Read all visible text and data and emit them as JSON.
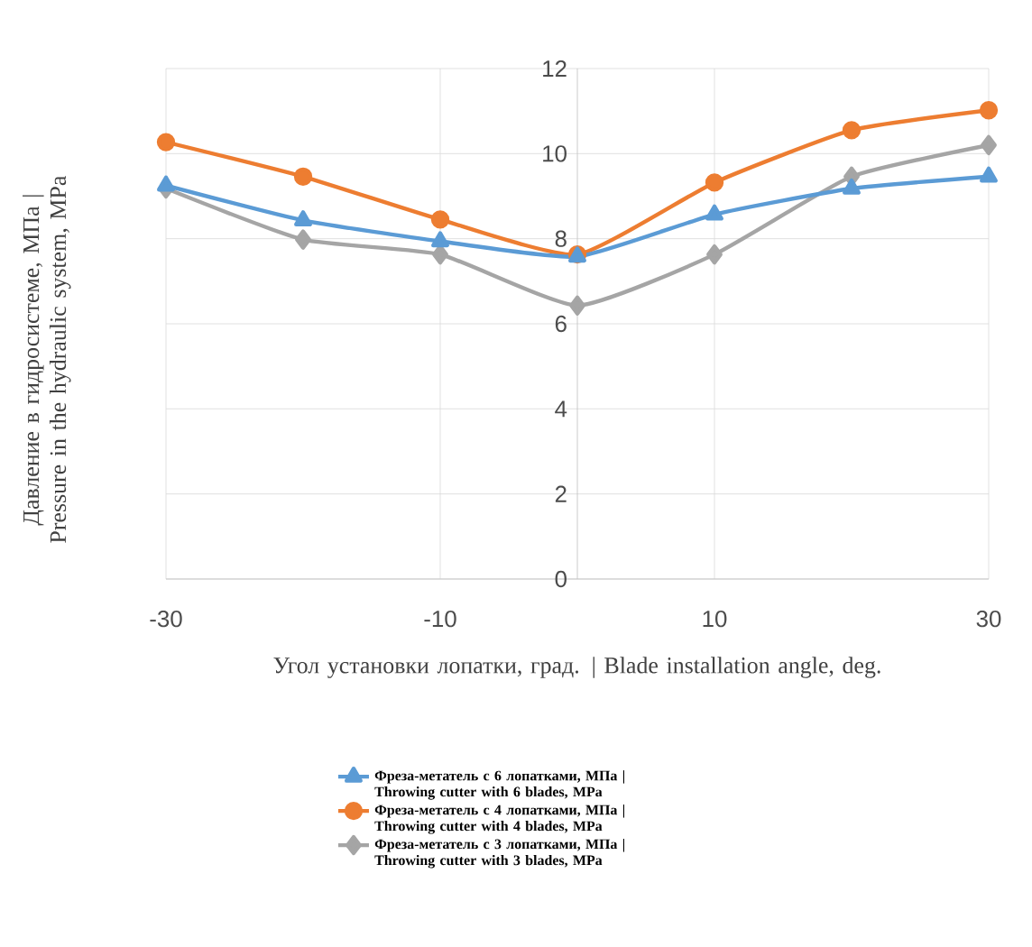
{
  "chart_data": {
    "type": "line",
    "ylabel": "Давление в гидросистеме, МПа | Pressure in the hydraulic system, MPa",
    "xlabel": "Угол установки лопатки, град. | Blade installation angle, deg.",
    "x": [
      -30,
      -20,
      -10,
      0,
      10,
      20,
      30
    ],
    "xlim": [
      -30,
      30
    ],
    "xticks": [
      -30,
      -10,
      10,
      30
    ],
    "ylim": [
      0,
      12
    ],
    "yticks": [
      0,
      2,
      4,
      6,
      8,
      10,
      12
    ],
    "grid": true,
    "legend": "bottom",
    "line_style": "solid",
    "series": [
      {
        "name": "Фреза-метатель с 6 лопатками, МПа | Throwing cutter with 6 blades, MPa",
        "color": "#5b9bd5",
        "marker": "triangle",
        "values": [
          9.25,
          8.43,
          7.94,
          7.58,
          8.57,
          9.18,
          9.46
        ]
      },
      {
        "name": "Фреза-метатель с 4 лопатками, МПа | Throwing cutter with 4 blades, MPa",
        "color": "#ed7d31",
        "marker": "circle",
        "values": [
          10.27,
          9.46,
          8.45,
          7.63,
          9.32,
          10.55,
          11.02
        ]
      },
      {
        "name": "Фреза-метатель с 3 лопатками, МПа | Throwing cutter with 3 blades, MPa",
        "color": "#a5a5a5",
        "marker": "diamond",
        "values": [
          9.18,
          7.98,
          7.63,
          6.43,
          7.63,
          9.46,
          10.2
        ]
      }
    ]
  }
}
